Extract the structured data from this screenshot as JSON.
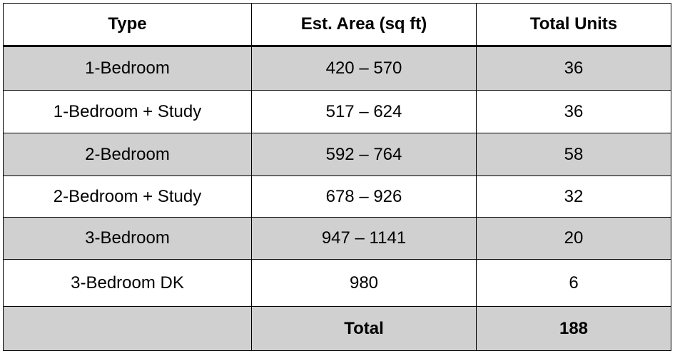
{
  "table": {
    "header": [
      "Type",
      "Est. Area (sq ft)",
      "Total Units"
    ],
    "rows": [
      [
        "1-Bedroom",
        "420 – 570",
        36
      ],
      [
        "1-Bedroom + Study",
        "517 – 624",
        36
      ],
      [
        "2-Bedroom",
        "592 – 764",
        58
      ],
      [
        "2-Bedroom + Study",
        "678 – 926",
        32
      ],
      [
        "3-Bedroom",
        "947 – 1141",
        20
      ],
      [
        "3-Bedroom DK",
        "980",
        6
      ]
    ],
    "total": {
      "label": "Total",
      "value": 188
    }
  }
}
